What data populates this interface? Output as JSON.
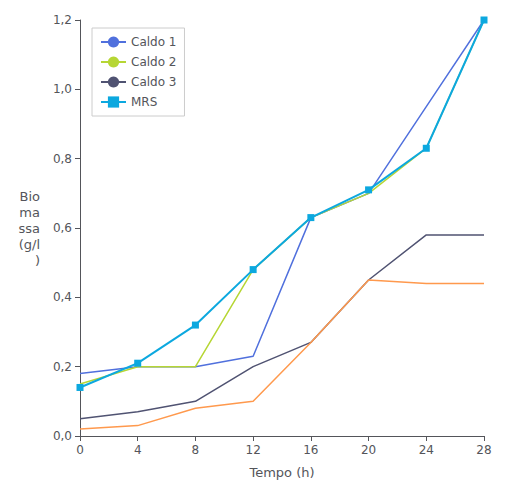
{
  "chart_data": {
    "type": "line",
    "xlabel": "Tempo (h)",
    "ylabel": "Bio\nma\nssa\n(g/l\n)",
    "x": [
      0,
      4,
      8,
      12,
      16,
      20,
      24,
      28
    ],
    "series": [
      {
        "name": "Caldo 1",
        "values": [
          0.18,
          0.2,
          0.2,
          0.23,
          0.63,
          0.7,
          0.95,
          1.2
        ]
      },
      {
        "name": "Caldo 2",
        "values": [
          0.15,
          0.2,
          0.2,
          0.48,
          0.63,
          0.7,
          0.83,
          1.2
        ]
      },
      {
        "name": "Caldo 3",
        "values": [
          0.05,
          0.07,
          0.1,
          0.2,
          0.27,
          0.45,
          0.58,
          0.58
        ]
      },
      {
        "values": [
          0.02,
          0.03,
          0.08,
          0.1,
          0.27,
          0.45,
          0.44,
          0.44
        ]
      },
      {
        "name": "MRS",
        "marker": "square",
        "values": [
          0.14,
          0.21,
          0.32,
          0.48,
          0.63,
          0.71,
          0.83,
          1.2
        ]
      }
    ],
    "xlim": [
      0,
      28
    ],
    "xticks": [
      0,
      4,
      8,
      12,
      16,
      20,
      24,
      28
    ],
    "ylim": [
      0.0,
      1.2
    ],
    "yticks": [
      {
        "value": 0.0,
        "label": "0,0"
      },
      {
        "value": 0.2,
        "label": "0,2"
      },
      {
        "value": 0.4,
        "label": "0,4"
      },
      {
        "value": 0.6,
        "label": "0,6"
      },
      {
        "value": 0.8,
        "label": "0,8"
      },
      {
        "value": 1.0,
        "label": "1,0"
      },
      {
        "value": 1.2,
        "label": "1,2"
      }
    ],
    "grid": false,
    "legend": "upper left"
  }
}
